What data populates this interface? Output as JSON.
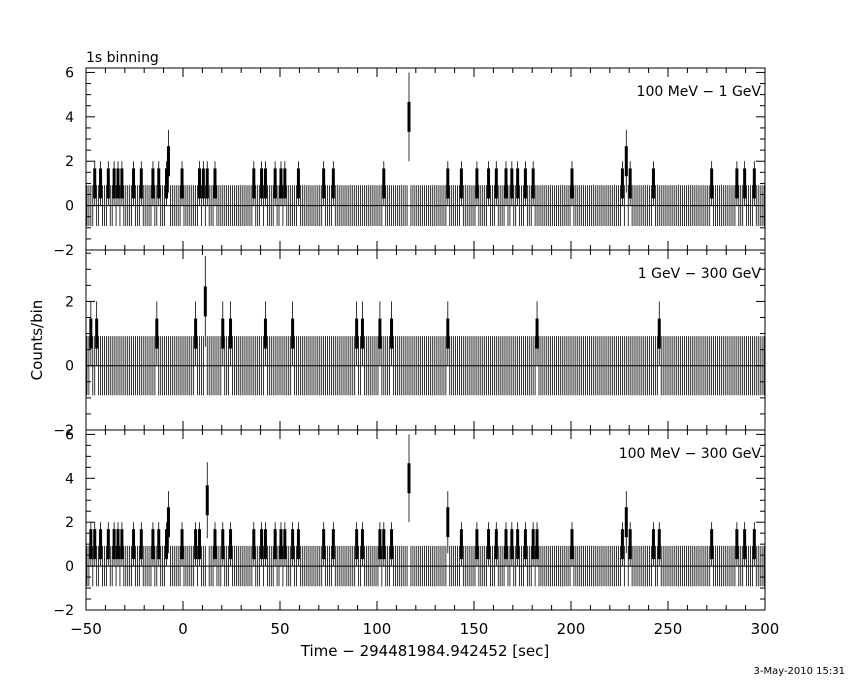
{
  "title": "1s binning",
  "timestamp": "3-May-2010 15:31",
  "chart_data": {
    "type": "scatter",
    "xlabel": "Time − 294481984.942452 [sec]",
    "ylabel": "Counts/bin",
    "xlim": [
      -50,
      300
    ],
    "x_ticks": [
      -50,
      0,
      50,
      100,
      150,
      200,
      250,
      300
    ],
    "panels": [
      {
        "name": "100 MeV − 1 GeV",
        "ylim": [
          -2,
          6.2
        ],
        "y_ticks": [
          -2,
          0,
          2,
          4,
          6
        ],
        "counts": [
          [
            -46,
            1
          ],
          [
            -43,
            1
          ],
          [
            -39,
            1
          ],
          [
            -36,
            1
          ],
          [
            -34,
            1
          ],
          [
            -32,
            1
          ],
          [
            -26,
            1
          ],
          [
            -22,
            1
          ],
          [
            -16,
            1
          ],
          [
            -13,
            1
          ],
          [
            -9,
            1
          ],
          [
            -8,
            2
          ],
          [
            -1,
            1
          ],
          [
            8,
            1
          ],
          [
            10,
            1
          ],
          [
            12,
            1
          ],
          [
            16,
            1
          ],
          [
            36,
            1
          ],
          [
            40,
            1
          ],
          [
            42,
            1
          ],
          [
            47,
            1
          ],
          [
            50,
            1
          ],
          [
            52,
            1
          ],
          [
            59,
            1
          ],
          [
            72,
            1
          ],
          [
            77,
            1
          ],
          [
            103,
            1
          ],
          [
            116,
            4
          ],
          [
            136,
            1
          ],
          [
            143,
            1
          ],
          [
            151,
            1
          ],
          [
            157,
            1
          ],
          [
            161,
            1
          ],
          [
            166,
            1
          ],
          [
            169,
            1
          ],
          [
            172,
            1
          ],
          [
            176,
            1
          ],
          [
            180,
            1
          ],
          [
            200,
            1
          ],
          [
            226,
            1
          ],
          [
            228,
            2
          ],
          [
            230,
            1
          ],
          [
            242,
            1
          ],
          [
            272,
            1
          ],
          [
            285,
            1
          ],
          [
            289,
            1
          ],
          [
            294,
            1
          ]
        ]
      },
      {
        "name": "1 GeV − 300 GeV",
        "ylim": [
          -2,
          3.6
        ],
        "y_ticks": [
          -2,
          0,
          2
        ],
        "counts": [
          [
            -48,
            1
          ],
          [
            -45,
            1
          ],
          [
            -14,
            1
          ],
          [
            6,
            1
          ],
          [
            11,
            2
          ],
          [
            20,
            1
          ],
          [
            24,
            1
          ],
          [
            42,
            1
          ],
          [
            56,
            1
          ],
          [
            89,
            1
          ],
          [
            92,
            1
          ],
          [
            101,
            1
          ],
          [
            107,
            1
          ],
          [
            136,
            1
          ],
          [
            182,
            1
          ],
          [
            245,
            1
          ]
        ]
      },
      {
        "name": "100 MeV − 300 GeV",
        "ylim": [
          -2,
          6.2
        ],
        "y_ticks": [
          -2,
          0,
          2,
          4,
          6
        ],
        "counts": [
          [
            -48,
            1
          ],
          [
            -46,
            1
          ],
          [
            -43,
            1
          ],
          [
            -39,
            1
          ],
          [
            -36,
            1
          ],
          [
            -34,
            1
          ],
          [
            -32,
            1
          ],
          [
            -26,
            1
          ],
          [
            -22,
            1
          ],
          [
            -16,
            1
          ],
          [
            -13,
            1
          ],
          [
            -9,
            1
          ],
          [
            -8,
            2
          ],
          [
            -1,
            1
          ],
          [
            6,
            1
          ],
          [
            8,
            1
          ],
          [
            12,
            3
          ],
          [
            16,
            1
          ],
          [
            20,
            1
          ],
          [
            24,
            1
          ],
          [
            36,
            1
          ],
          [
            40,
            1
          ],
          [
            42,
            1
          ],
          [
            47,
            1
          ],
          [
            50,
            1
          ],
          [
            52,
            1
          ],
          [
            56,
            1
          ],
          [
            59,
            1
          ],
          [
            72,
            1
          ],
          [
            77,
            1
          ],
          [
            89,
            1
          ],
          [
            92,
            1
          ],
          [
            101,
            1
          ],
          [
            103,
            1
          ],
          [
            107,
            1
          ],
          [
            116,
            4
          ],
          [
            136,
            2
          ],
          [
            143,
            1
          ],
          [
            151,
            1
          ],
          [
            157,
            1
          ],
          [
            161,
            1
          ],
          [
            166,
            1
          ],
          [
            169,
            1
          ],
          [
            172,
            1
          ],
          [
            176,
            1
          ],
          [
            180,
            1
          ],
          [
            182,
            1
          ],
          [
            200,
            1
          ],
          [
            226,
            1
          ],
          [
            228,
            2
          ],
          [
            230,
            1
          ],
          [
            242,
            1
          ],
          [
            245,
            1
          ],
          [
            272,
            1
          ],
          [
            285,
            1
          ],
          [
            289,
            1
          ],
          [
            294,
            1
          ]
        ]
      }
    ]
  }
}
